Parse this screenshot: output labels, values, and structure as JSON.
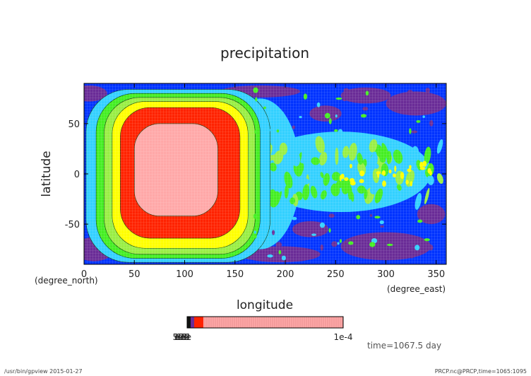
{
  "chart_data": {
    "type": "heatmap",
    "title": "precipitation",
    "xlabel": "longitude",
    "ylabel": "latitude",
    "x_unit": "(degree_east)",
    "y_unit": "(degree_north)",
    "xlim": [
      0,
      360
    ],
    "ylim": [
      -90,
      90
    ],
    "x_ticks": [
      0,
      50,
      100,
      150,
      200,
      250,
      300,
      350
    ],
    "y_ticks": [
      -50,
      0,
      50
    ],
    "grid": true,
    "colorbar": {
      "labels_left": "1e-9 1e-8 1e-7 1e-6 1e-5",
      "label_right": "1e-4"
    },
    "annotation": "time=1067.5 day",
    "footer_left": "/usr/bin/gpview  2015-01-27",
    "footer_right": "PRCP.nc@PRCP,time=1065:1095",
    "features": [
      {
        "type": "rain-core",
        "center_lon": 100,
        "center_lat": 0,
        "extent_lon": [
          20,
          170
        ],
        "extent_lat": [
          -85,
          80
        ]
      },
      {
        "type": "equatorial-band",
        "lon_range": [
          170,
          330
        ],
        "lat_range": [
          -30,
          30
        ]
      }
    ],
    "colors": {
      "deep_purple": "#6a2c97",
      "blue": "#0033ff",
      "cyan": "#33d0ff",
      "green": "#44ee22",
      "light_green": "#99ee44",
      "yellow": "#ffff00",
      "red": "#ff2200",
      "pink": "#ffa8a8"
    }
  }
}
